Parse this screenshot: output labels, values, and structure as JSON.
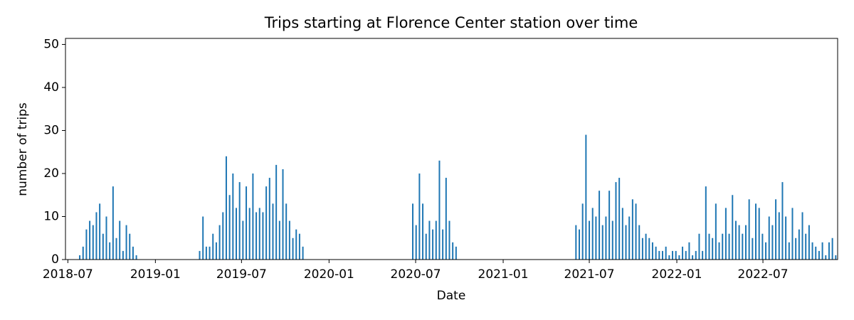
{
  "chart_data": {
    "type": "bar",
    "title": "Trips starting at Florence Center station over time",
    "x_label": "Date",
    "y_label": "number of trips",
    "color": "#1f77b4",
    "xlim": [
      "2018-06-26",
      "2022-12-05"
    ],
    "xticks": [
      "2018-07",
      "2019-01",
      "2019-07",
      "2020-01",
      "2020-07",
      "2021-01",
      "2021-07",
      "2022-01",
      "2022-07"
    ],
    "ylim": [
      0,
      51.4
    ],
    "yticks": [
      0,
      10,
      20,
      30,
      40,
      50
    ],
    "x": [
      "2018-07-26",
      "2018-08-02",
      "2018-08-09",
      "2018-08-16",
      "2018-08-23",
      "2018-08-30",
      "2018-09-06",
      "2018-09-13",
      "2018-09-20",
      "2018-09-27",
      "2018-10-04",
      "2018-10-11",
      "2018-10-18",
      "2018-10-25",
      "2018-11-01",
      "2018-11-08",
      "2018-11-15",
      "2018-11-22",
      "2019-04-04",
      "2019-04-11",
      "2019-04-18",
      "2019-04-25",
      "2019-05-02",
      "2019-05-09",
      "2019-05-16",
      "2019-05-23",
      "2019-05-30",
      "2019-06-06",
      "2019-06-13",
      "2019-06-20",
      "2019-06-27",
      "2019-07-04",
      "2019-07-11",
      "2019-07-18",
      "2019-07-25",
      "2019-08-01",
      "2019-08-08",
      "2019-08-15",
      "2019-08-22",
      "2019-08-29",
      "2019-09-05",
      "2019-09-12",
      "2019-09-19",
      "2019-09-26",
      "2019-10-03",
      "2019-10-10",
      "2019-10-17",
      "2019-10-24",
      "2019-10-31",
      "2019-11-07",
      "2020-06-25",
      "2020-07-02",
      "2020-07-09",
      "2020-07-16",
      "2020-07-23",
      "2020-07-30",
      "2020-08-06",
      "2020-08-13",
      "2020-08-20",
      "2020-08-27",
      "2020-09-03",
      "2020-09-10",
      "2020-09-17",
      "2020-09-24",
      "2021-06-03",
      "2021-06-10",
      "2021-06-17",
      "2021-06-24",
      "2021-07-01",
      "2021-07-08",
      "2021-07-15",
      "2021-07-22",
      "2021-07-29",
      "2021-08-05",
      "2021-08-12",
      "2021-08-19",
      "2021-08-26",
      "2021-09-02",
      "2021-09-09",
      "2021-09-16",
      "2021-09-23",
      "2021-09-30",
      "2021-10-07",
      "2021-10-14",
      "2021-10-21",
      "2021-10-28",
      "2021-11-04",
      "2021-11-11",
      "2021-11-18",
      "2021-11-25",
      "2021-12-02",
      "2021-12-09",
      "2021-12-16",
      "2021-12-23",
      "2021-12-30",
      "2022-01-06",
      "2022-01-13",
      "2022-01-20",
      "2022-01-27",
      "2022-02-03",
      "2022-02-10",
      "2022-02-17",
      "2022-02-24",
      "2022-03-03",
      "2022-03-10",
      "2022-03-17",
      "2022-03-24",
      "2022-03-31",
      "2022-04-07",
      "2022-04-14",
      "2022-04-21",
      "2022-04-28",
      "2022-05-05",
      "2022-05-12",
      "2022-05-19",
      "2022-05-26",
      "2022-06-02",
      "2022-06-09",
      "2022-06-16",
      "2022-06-23",
      "2022-06-30",
      "2022-07-07",
      "2022-07-14",
      "2022-07-21",
      "2022-07-28",
      "2022-08-04",
      "2022-08-11",
      "2022-08-18",
      "2022-08-25",
      "2022-09-01",
      "2022-09-08",
      "2022-09-15",
      "2022-09-22",
      "2022-09-29",
      "2022-10-06",
      "2022-10-13",
      "2022-10-20",
      "2022-10-27",
      "2022-11-03",
      "2022-11-10",
      "2022-11-17",
      "2022-11-24",
      "2022-12-01"
    ],
    "values": [
      1,
      3,
      7,
      9,
      8,
      11,
      13,
      6,
      10,
      4,
      17,
      5,
      9,
      2,
      8,
      6,
      3,
      1,
      2,
      10,
      3,
      3,
      6,
      4,
      8,
      11,
      24,
      15,
      20,
      12,
      18,
      9,
      17,
      12,
      20,
      11,
      12,
      11,
      17,
      19,
      13,
      22,
      9,
      21,
      13,
      9,
      5,
      7,
      6,
      3,
      13,
      8,
      20,
      13,
      6,
      9,
      7,
      9,
      23,
      7,
      19,
      9,
      4,
      3,
      8,
      7,
      13,
      29,
      9,
      12,
      10,
      16,
      8,
      10,
      16,
      9,
      18,
      19,
      12,
      8,
      10,
      14,
      13,
      8,
      5,
      6,
      5,
      4,
      3,
      2,
      2,
      3,
      1,
      2,
      2,
      1,
      3,
      2,
      4,
      1,
      2,
      6,
      2,
      17,
      6,
      5,
      13,
      4,
      6,
      12,
      6,
      15,
      9,
      8,
      6,
      8,
      14,
      5,
      13,
      12,
      6,
      4,
      10,
      8,
      14,
      11,
      18,
      10,
      4,
      12,
      5,
      7,
      11,
      6,
      8,
      4,
      3,
      2,
      4,
      1,
      4,
      5,
      1
    ]
  }
}
